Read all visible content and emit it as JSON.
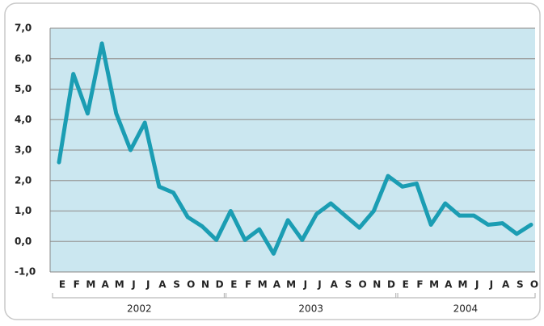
{
  "chart_data": {
    "type": "line",
    "categories": [
      "E",
      "F",
      "M",
      "A",
      "M",
      "J",
      "J",
      "A",
      "S",
      "O",
      "N",
      "D",
      "E",
      "F",
      "M",
      "A",
      "M",
      "J",
      "J",
      "A",
      "S",
      "O",
      "N",
      "D",
      "E",
      "F",
      "M",
      "A",
      "M",
      "J",
      "J",
      "A",
      "S",
      "O"
    ],
    "groups": [
      "2002",
      "2003",
      "2004"
    ],
    "series": [
      {
        "color": "#1b9db3",
        "values": [
          2.6,
          5.5,
          4.2,
          6.5,
          4.2,
          3.0,
          3.9,
          1.8,
          1.6,
          0.8,
          0.5,
          0.05,
          1.0,
          0.05,
          0.4,
          -0.4,
          0.7,
          0.05,
          0.9,
          1.25,
          0.85,
          0.45,
          1.0,
          2.15,
          1.8,
          1.9,
          0.55,
          1.25,
          0.85,
          0.85,
          0.55,
          0.6,
          0.25,
          0.55
        ]
      }
    ],
    "ylim": [
      -1.0,
      7.0
    ],
    "yticks": [
      {
        "value": -1.0,
        "label": "-1,0"
      },
      {
        "value": 0.0,
        "label": "0,0"
      },
      {
        "value": 1.0,
        "label": "1,0"
      },
      {
        "value": 2.0,
        "label": "2,0"
      },
      {
        "value": 3.0,
        "label": "3,0"
      },
      {
        "value": 4.0,
        "label": "4,0"
      },
      {
        "value": 5.0,
        "label": "5,0"
      },
      {
        "value": 6.0,
        "label": "6,0"
      },
      {
        "value": 7.0,
        "label": "7,0"
      }
    ],
    "grid": true
  }
}
